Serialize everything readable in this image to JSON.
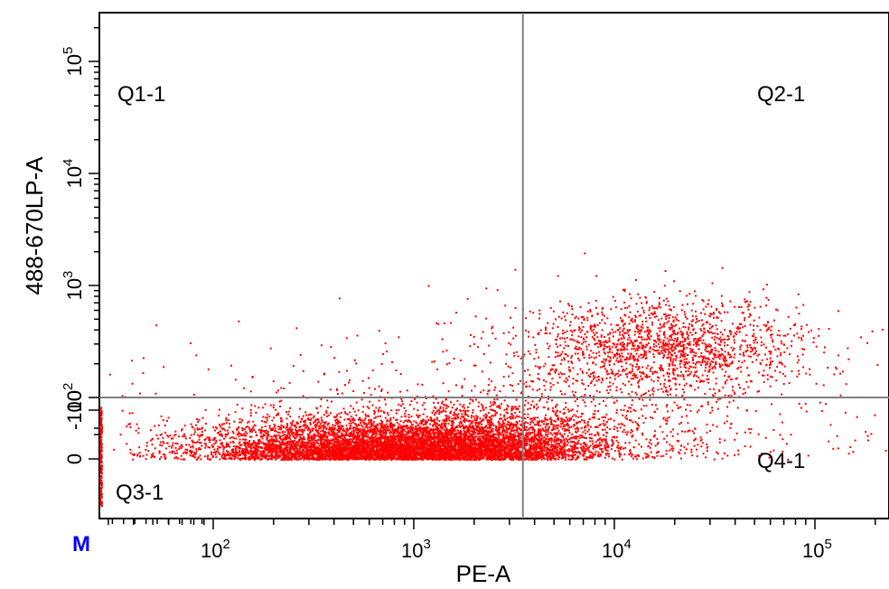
{
  "chart_data": {
    "type": "scatter",
    "title": "",
    "xlabel": "PE-A",
    "ylabel": "488-670LP-A",
    "x_scale": "biexponential",
    "y_scale": "biexponential",
    "x_tick_labels": [
      {
        "base": "10",
        "exp": "2"
      },
      {
        "base": "10",
        "exp": "3"
      },
      {
        "base": "10",
        "exp": "4"
      },
      {
        "base": "10",
        "exp": "5"
      }
    ],
    "y_tick_labels": [
      {
        "text": "-100"
      },
      {
        "text": "0"
      },
      {
        "base": "10",
        "exp": "2"
      },
      {
        "base": "10",
        "exp": "3"
      },
      {
        "base": "10",
        "exp": "4"
      },
      {
        "base": "10",
        "exp": "5"
      }
    ],
    "corner_marker": "M",
    "quadrant_gate": {
      "x": 3500,
      "y": 100
    },
    "quadrants": [
      {
        "label": "Q1-1",
        "position": "top-left"
      },
      {
        "label": "Q2-1",
        "position": "top-right"
      },
      {
        "label": "Q3-1",
        "position": "bottom-left"
      },
      {
        "label": "Q4-1",
        "position": "bottom-right"
      }
    ],
    "populations": [
      {
        "x_center": 700,
        "x_spread_decades": 0.45,
        "y_center": 0,
        "y_spread": 35,
        "count": 6500
      },
      {
        "x_center": 2800,
        "x_spread_decades": 0.25,
        "y_center": 10,
        "y_spread": 40,
        "count": 1600
      },
      {
        "x_center": 18000,
        "x_spread_decades": 0.35,
        "y_center": 280,
        "y_spread": 0.22,
        "count": 1700
      },
      {
        "x_center": 8000,
        "x_spread_decades": 0.55,
        "y_center": 30,
        "y_spread": 60,
        "count": 600
      },
      {
        "x_center": 1500,
        "x_spread_decades": 0.8,
        "y_center": 90,
        "y_spread": 0.35,
        "count": 350
      }
    ],
    "colors": {
      "points": "#ff0000",
      "gate": "#808080",
      "marker": "#0000ff"
    }
  }
}
